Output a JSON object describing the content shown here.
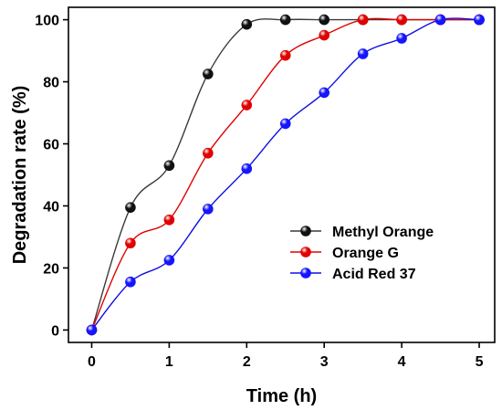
{
  "chart_data": {
    "type": "line",
    "xlabel": "Time (h)",
    "ylabel": "Degradation rate (%)",
    "xlim": [
      -0.3,
      5.2
    ],
    "ylim": [
      -4,
      104
    ],
    "x_ticks": [
      0,
      1,
      2,
      3,
      4,
      5
    ],
    "y_ticks": [
      0,
      20,
      40,
      60,
      80,
      100
    ],
    "grid": false,
    "legend_position": "center-right",
    "series": [
      {
        "name": "Methyl Orange",
        "color": "#3a3a3a",
        "marker_color": "#111111",
        "x": [
          0,
          0.5,
          1,
          1.5,
          2,
          2.5,
          3,
          3.5,
          4,
          4.5,
          5
        ],
        "y": [
          0,
          39.5,
          53,
          82.5,
          98.5,
          100,
          100,
          100,
          100,
          100,
          100
        ]
      },
      {
        "name": "Orange G",
        "color": "#e00000",
        "marker_color": "#e00000",
        "x": [
          0,
          0.5,
          1,
          1.5,
          2,
          2.5,
          3,
          3.5,
          4,
          4.5,
          5
        ],
        "y": [
          0,
          28,
          35.5,
          57,
          72.5,
          88.5,
          95,
          100,
          100,
          100,
          100
        ]
      },
      {
        "name": "Acid Red 37",
        "color": "#1010e0",
        "marker_color": "#1515ff",
        "x": [
          0,
          0.5,
          1,
          1.5,
          2,
          2.5,
          3,
          3.5,
          4,
          4.5,
          5
        ],
        "y": [
          0,
          15.5,
          22.5,
          39,
          52,
          66.5,
          76.5,
          89,
          94,
          100,
          100
        ]
      }
    ]
  }
}
